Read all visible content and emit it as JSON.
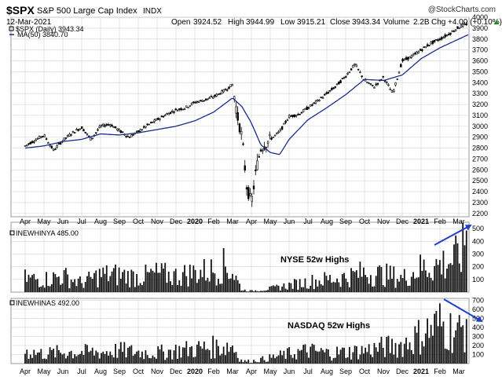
{
  "header": {
    "symbol": "$SPX",
    "name": "S&P 500 Large Cap Index",
    "exchange": "INDX",
    "source": "@StockCharts.com",
    "date": "12-Mar-2021",
    "open_label": "Open",
    "open": "3924.52",
    "high_label": "High",
    "high": "3944.99",
    "low_label": "Low",
    "low": "3915.21",
    "close_label": "Close",
    "close": "3943.34",
    "volume_label": "Volume",
    "volume": "2.2B",
    "chg_label": "Chg",
    "chg": "+4.00 (+0.10%)",
    "up_arrow": "▲"
  },
  "colors": {
    "price": "#000000",
    "ma": "#1c2a8c",
    "grid": "#d8d8d8",
    "panel_border": "#9a9a9a",
    "arrow": "#1f3fcc"
  },
  "chart_data": [
    {
      "type": "candlestick",
      "legend": [
        {
          "text": "$SPX (Daily) 3943.34",
          "marker": "box"
        },
        {
          "text": "MA(50) 3840.70",
          "marker": "line"
        }
      ],
      "x_ticks": [
        "Apr",
        "May",
        "Jun",
        "Jul",
        "Aug",
        "Sep",
        "Oct",
        "Nov",
        "Dec",
        "2020",
        "Feb",
        "Mar",
        "Apr",
        "May",
        "Jun",
        "Jul",
        "Aug",
        "Sep",
        "Oct",
        "Nov",
        "Dec",
        "2021",
        "Feb",
        "Mar"
      ],
      "ylim": [
        2170,
        4000
      ],
      "y_ticks": [
        2200,
        2300,
        2400,
        2500,
        2600,
        2700,
        2800,
        2900,
        3000,
        3100,
        3200,
        3300,
        3400,
        3500,
        3600,
        3700,
        3800,
        3900,
        4000
      ],
      "series": [
        {
          "name": "$SPX (Daily)",
          "x": [
            0,
            0.5,
            1,
            1.5,
            2,
            2.5,
            3,
            3.5,
            4,
            4.5,
            5,
            5.5,
            6,
            6.5,
            7,
            7.5,
            8,
            8.5,
            9,
            9.5,
            10,
            10.5,
            11,
            11.25,
            11.5,
            11.75,
            12,
            12.25,
            12.5,
            13,
            13.5,
            14,
            14.5,
            15,
            15.5,
            16,
            16.5,
            17,
            17.5,
            18,
            18.5,
            19,
            19.5,
            20,
            20.5,
            21,
            21.5,
            22,
            22.5,
            23,
            23.5
          ],
          "values": [
            2820,
            2870,
            2920,
            2780,
            2870,
            2940,
            2990,
            2880,
            3000,
            3020,
            2960,
            2900,
            2950,
            3010,
            3060,
            3110,
            3150,
            3170,
            3220,
            3240,
            3270,
            3320,
            3380,
            3100,
            2900,
            2450,
            2290,
            2600,
            2800,
            2880,
            2950,
            3090,
            3110,
            3170,
            3230,
            3300,
            3370,
            3460,
            3570,
            3420,
            3360,
            3450,
            3300,
            3600,
            3640,
            3700,
            3760,
            3800,
            3850,
            3910,
            3943
          ]
        },
        {
          "name": "MA(50)",
          "x": [
            0,
            1,
            2,
            3,
            4,
            5,
            6,
            7,
            8,
            9,
            10,
            11,
            11.5,
            12,
            12.5,
            13,
            13.5,
            14,
            15,
            16,
            17,
            18,
            19,
            20,
            21,
            22,
            23,
            23.5
          ],
          "values": [
            2800,
            2820,
            2860,
            2880,
            2930,
            2920,
            2940,
            2970,
            3000,
            3050,
            3130,
            3260,
            3180,
            3030,
            2830,
            2760,
            2740,
            2880,
            3060,
            3170,
            3290,
            3430,
            3420,
            3470,
            3620,
            3720,
            3800,
            3840
          ]
        }
      ]
    },
    {
      "type": "bar",
      "series_label": "INEWHINYA 485.00",
      "annotation": "NYSE 52w Highs",
      "ylim": [
        0,
        550
      ],
      "y_ticks": [
        100,
        200,
        300,
        400,
        500
      ],
      "profile": {
        "x": [
          0,
          1,
          2,
          3,
          4,
          5,
          6,
          7,
          8,
          9,
          10,
          10.5,
          11,
          11.5,
          12,
          13,
          14,
          15,
          16,
          17,
          18,
          19,
          19.5,
          20,
          21,
          22,
          23,
          23.5
        ],
        "values": [
          120,
          110,
          140,
          80,
          150,
          150,
          130,
          160,
          140,
          170,
          190,
          230,
          180,
          20,
          10,
          30,
          60,
          90,
          110,
          130,
          170,
          150,
          140,
          120,
          210,
          240,
          300,
          485
        ]
      }
    },
    {
      "type": "bar",
      "series_label": "INEWHINAS 492.00",
      "annotation": "NASDAQ 52w Highs",
      "ylim": [
        0,
        720
      ],
      "y_ticks": [
        100,
        200,
        300,
        400,
        500,
        600,
        700
      ],
      "profile": {
        "x": [
          0,
          1,
          2,
          3,
          4,
          5,
          6,
          7,
          8,
          9,
          10,
          11,
          11.5,
          12,
          13,
          14,
          15,
          16,
          17,
          18,
          19,
          20,
          21,
          22,
          22.5,
          23,
          23.5
        ],
        "values": [
          150,
          120,
          140,
          140,
          140,
          160,
          140,
          130,
          160,
          180,
          200,
          220,
          30,
          30,
          70,
          120,
          160,
          130,
          140,
          160,
          200,
          230,
          350,
          480,
          420,
          380,
          492
        ]
      }
    }
  ]
}
